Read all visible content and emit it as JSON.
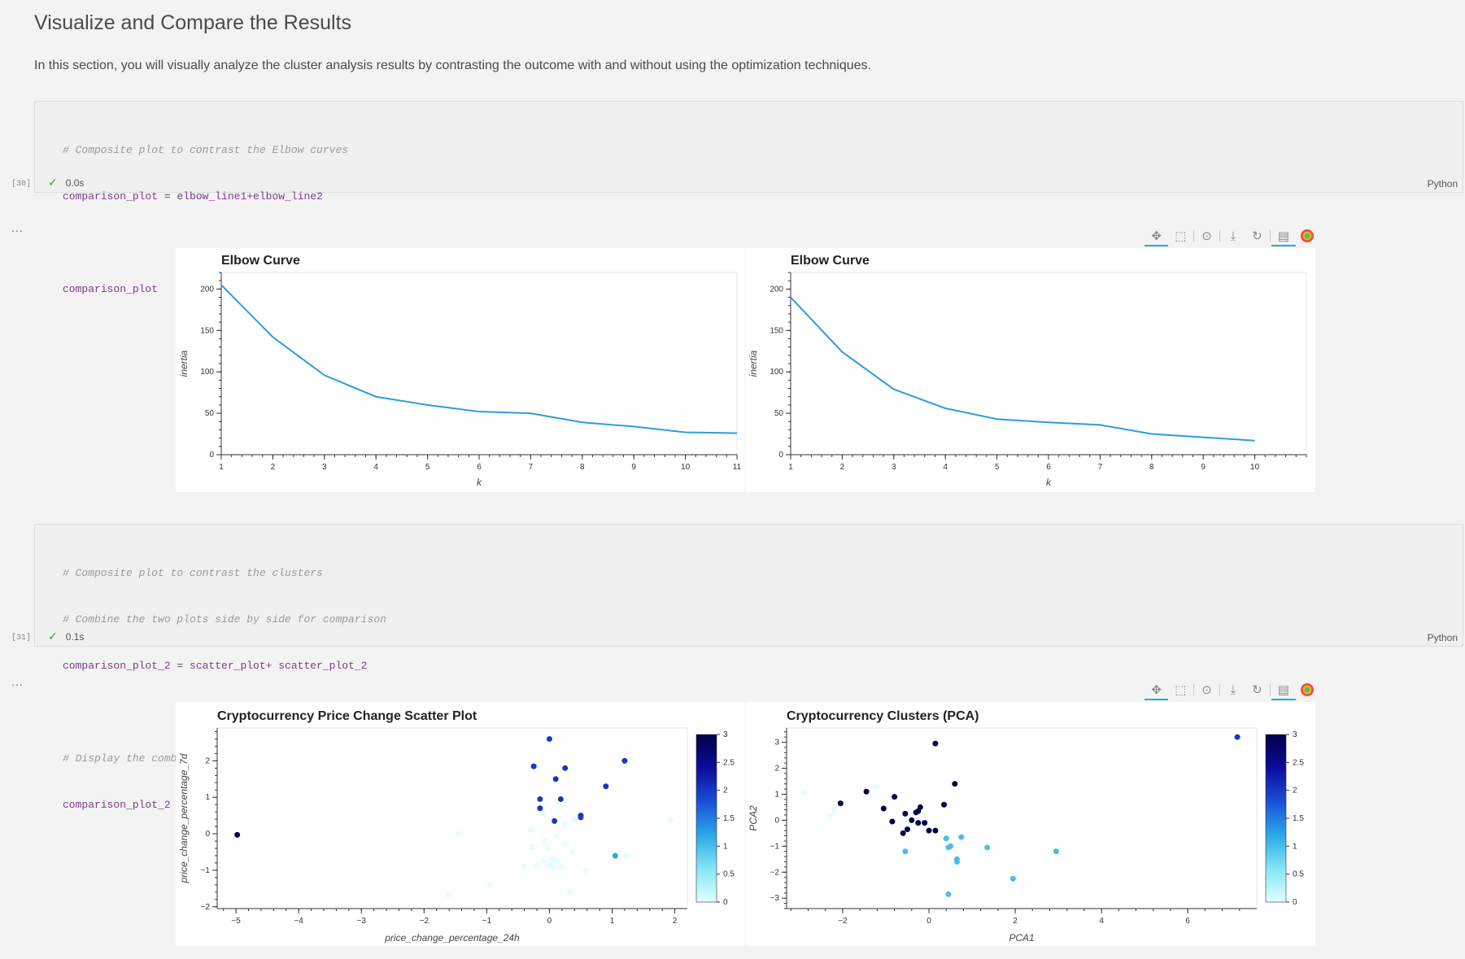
{
  "page": {
    "title": "Visualize and Compare the Results",
    "intro": "In this section, you will visually analyze the cluster analysis results by contrasting the outcome with and without using the optimization techniques."
  },
  "cells": [
    {
      "exec_count": "[30]",
      "status_time": "0.0s",
      "language": "Python",
      "code": {
        "line1": "# Composite plot to contrast the Elbow curves",
        "line2_var": "comparison_plot",
        "line2_op": " = ",
        "line2_expr": "elbow_line1+elbow_line2",
        "line4": "comparison_plot"
      },
      "output_ellipsis": "..."
    },
    {
      "exec_count": "[31]",
      "status_time": "0.1s",
      "language": "Python",
      "code": {
        "line1": "# Composite plot to contrast the clusters",
        "line2": "# Combine the two plots side by side for comparison",
        "line3_var": "comparison_plot_2",
        "line3_op": " = ",
        "line3_expr": "scatter_plot+ scatter_plot_2",
        "line5": "# Display the combined plots",
        "line6": "comparison_plot_2"
      },
      "output_ellipsis": "..."
    }
  ],
  "toolbar_icons": [
    "pan-icon",
    "box-zoom-icon",
    "wheel-zoom-icon",
    "save-icon",
    "reset-icon",
    "hover-icon",
    "bokeh-logo-icon"
  ],
  "colors": {
    "line": "#2b9fd9",
    "colormap": [
      "#e0ffff",
      "#86e6f5",
      "#2aa8e8",
      "#1a4fd8",
      "#0c0c9c",
      "#00004a"
    ]
  },
  "chart_data": [
    {
      "type": "line",
      "title": "Elbow Curve",
      "xlabel": "k",
      "ylabel": "inertia",
      "x": [
        1,
        2,
        3,
        4,
        5,
        6,
        7,
        8,
        9,
        10,
        11
      ],
      "y": [
        205,
        142,
        96,
        70,
        60,
        52,
        50,
        39,
        34,
        27,
        26
      ],
      "xlim": [
        1,
        11
      ],
      "ylim": [
        0,
        220
      ],
      "xticks": [
        "1",
        "2",
        "3",
        "4",
        "5",
        "6",
        "7",
        "8",
        "9",
        "10",
        "11"
      ],
      "yticks": [
        "0",
        "50",
        "100",
        "150",
        "200"
      ]
    },
    {
      "type": "line",
      "title": "Elbow Curve",
      "xlabel": "k",
      "ylabel": "inertia",
      "x": [
        1,
        2,
        3,
        4,
        5,
        6,
        7,
        8,
        9,
        10
      ],
      "y": [
        190,
        124,
        79,
        56,
        43,
        39,
        36,
        25,
        21,
        17
      ],
      "xlim": [
        1,
        11
      ],
      "ylim": [
        0,
        220
      ],
      "xticks": [
        "1",
        "2",
        "3",
        "4",
        "5",
        "6",
        "7",
        "8",
        "9",
        "10"
      ],
      "yticks": [
        "0",
        "50",
        "100",
        "150",
        "200"
      ]
    },
    {
      "type": "scatter",
      "title": "Cryptocurrency Price Change Scatter Plot",
      "xlabel": "price_change_percentage_24h",
      "ylabel": "price_change_percentage_7d",
      "xlim": [
        -5.3,
        2.2
      ],
      "ylim": [
        -2.05,
        2.9
      ],
      "xticks": [
        "−5",
        "−4",
        "−3",
        "−2",
        "−1",
        "0",
        "1",
        "2"
      ],
      "yticks": [
        "−2",
        "−1",
        "0",
        "1",
        "2"
      ],
      "colorbar": {
        "min": 0,
        "max": 3,
        "ticks": [
          "0",
          "0.5",
          "1",
          "1.5",
          "2",
          "2.5",
          "3"
        ]
      },
      "points": [
        {
          "x": -4.98,
          "y": -0.03,
          "c": 3
        },
        {
          "x": 0.0,
          "y": 2.6,
          "c": 2
        },
        {
          "x": -0.25,
          "y": 1.85,
          "c": 2
        },
        {
          "x": 0.25,
          "y": 1.8,
          "c": 2
        },
        {
          "x": 1.2,
          "y": 2.0,
          "c": 2
        },
        {
          "x": 0.1,
          "y": 1.5,
          "c": 2
        },
        {
          "x": 0.9,
          "y": 1.3,
          "c": 2
        },
        {
          "x": -0.15,
          "y": 0.95,
          "c": 2
        },
        {
          "x": 0.18,
          "y": 0.95,
          "c": 2
        },
        {
          "x": -0.15,
          "y": 0.7,
          "c": 2
        },
        {
          "x": 0.5,
          "y": 0.5,
          "c": 2
        },
        {
          "x": 0.5,
          "y": 0.45,
          "c": 2
        },
        {
          "x": 0.08,
          "y": 0.35,
          "c": 2
        },
        {
          "x": 1.05,
          "y": -0.6,
          "c": 1.2
        },
        {
          "x": -1.45,
          "y": 0.0,
          "c": 0
        },
        {
          "x": -0.1,
          "y": 0.55,
          "c": 0
        },
        {
          "x": -0.3,
          "y": 0.1,
          "c": 0
        },
        {
          "x": 0.25,
          "y": 0.25,
          "c": 0
        },
        {
          "x": 0.4,
          "y": 0.4,
          "c": 0
        },
        {
          "x": 0.12,
          "y": -0.05,
          "c": 0
        },
        {
          "x": -0.08,
          "y": -0.2,
          "c": 0
        },
        {
          "x": -0.28,
          "y": -0.35,
          "c": 0
        },
        {
          "x": 0.25,
          "y": -0.3,
          "c": 0
        },
        {
          "x": -0.03,
          "y": -0.4,
          "c": 0
        },
        {
          "x": 0.38,
          "y": -0.5,
          "c": 0
        },
        {
          "x": 0.05,
          "y": -0.7,
          "c": 0
        },
        {
          "x": -0.1,
          "y": -0.75,
          "c": 0
        },
        {
          "x": 0.0,
          "y": -0.85,
          "c": 0
        },
        {
          "x": 0.12,
          "y": -0.75,
          "c": 0
        },
        {
          "x": -0.2,
          "y": -0.85,
          "c": 0
        },
        {
          "x": -0.4,
          "y": -0.9,
          "c": 0
        },
        {
          "x": 0.07,
          "y": -0.92,
          "c": 0
        },
        {
          "x": 0.18,
          "y": -0.92,
          "c": 0
        },
        {
          "x": 0.58,
          "y": -1.0,
          "c": 0
        },
        {
          "x": 1.22,
          "y": -0.6,
          "c": 0
        },
        {
          "x": 1.93,
          "y": 0.37,
          "c": 0
        },
        {
          "x": -0.95,
          "y": -1.42,
          "c": 0
        },
        {
          "x": 0.32,
          "y": -1.6,
          "c": 0
        },
        {
          "x": -1.62,
          "y": -1.68,
          "c": 0
        }
      ]
    },
    {
      "type": "scatter",
      "title": "Cryptocurrency Clusters (PCA)",
      "xlabel": "PCA1",
      "ylabel": "PCA2",
      "xlim": [
        -3.3,
        7.6
      ],
      "ylim": [
        -3.4,
        3.55
      ],
      "xticks": [
        "−2",
        "0",
        "2",
        "4",
        "6"
      ],
      "yticks": [
        "−3",
        "−2",
        "−1",
        "0",
        "1",
        "2",
        "3"
      ],
      "colorbar": {
        "min": 0,
        "max": 3,
        "ticks": [
          "0",
          "0.5",
          "1",
          "1.5",
          "2",
          "2.5",
          "3"
        ]
      },
      "points": [
        {
          "x": 7.15,
          "y": 3.2,
          "c": 2
        },
        {
          "x": 0.15,
          "y": 2.95,
          "c": 3
        },
        {
          "x": -2.05,
          "y": 0.65,
          "c": 3
        },
        {
          "x": -1.45,
          "y": 1.1,
          "c": 3
        },
        {
          "x": -0.8,
          "y": 0.9,
          "c": 3
        },
        {
          "x": -1.05,
          "y": 0.45,
          "c": 3
        },
        {
          "x": 0.6,
          "y": 1.4,
          "c": 3
        },
        {
          "x": -0.2,
          "y": 0.5,
          "c": 3
        },
        {
          "x": -0.3,
          "y": 0.3,
          "c": 3
        },
        {
          "x": -0.55,
          "y": 0.25,
          "c": 3
        },
        {
          "x": -0.4,
          "y": 0.0,
          "c": 3
        },
        {
          "x": -0.85,
          "y": -0.05,
          "c": 3
        },
        {
          "x": -0.25,
          "y": -0.1,
          "c": 3
        },
        {
          "x": -0.1,
          "y": -0.1,
          "c": 3
        },
        {
          "x": -0.5,
          "y": -0.35,
          "c": 3
        },
        {
          "x": 0.0,
          "y": -0.4,
          "c": 3
        },
        {
          "x": 0.15,
          "y": -0.4,
          "c": 3
        },
        {
          "x": -0.6,
          "y": -0.5,
          "c": 3
        },
        {
          "x": 0.35,
          "y": 0.6,
          "c": 3
        },
        {
          "x": -0.25,
          "y": 0.35,
          "c": 3
        },
        {
          "x": -2.9,
          "y": 1.05,
          "c": 0
        },
        {
          "x": -1.25,
          "y": 1.3,
          "c": 0
        },
        {
          "x": -2.2,
          "y": 0.4,
          "c": 0
        },
        {
          "x": -2.3,
          "y": 0.15,
          "c": 0
        },
        {
          "x": 0.4,
          "y": -0.7,
          "c": 1
        },
        {
          "x": 0.75,
          "y": -0.65,
          "c": 1
        },
        {
          "x": 0.45,
          "y": -1.05,
          "c": 1
        },
        {
          "x": 0.5,
          "y": -1.0,
          "c": 1
        },
        {
          "x": -0.55,
          "y": -1.2,
          "c": 1
        },
        {
          "x": 1.35,
          "y": -1.05,
          "c": 1
        },
        {
          "x": 2.95,
          "y": -1.2,
          "c": 1
        },
        {
          "x": 0.65,
          "y": -1.5,
          "c": 1
        },
        {
          "x": 0.65,
          "y": -1.6,
          "c": 1
        },
        {
          "x": 1.95,
          "y": -2.25,
          "c": 1
        },
        {
          "x": 0.45,
          "y": -2.85,
          "c": 1
        }
      ]
    }
  ]
}
